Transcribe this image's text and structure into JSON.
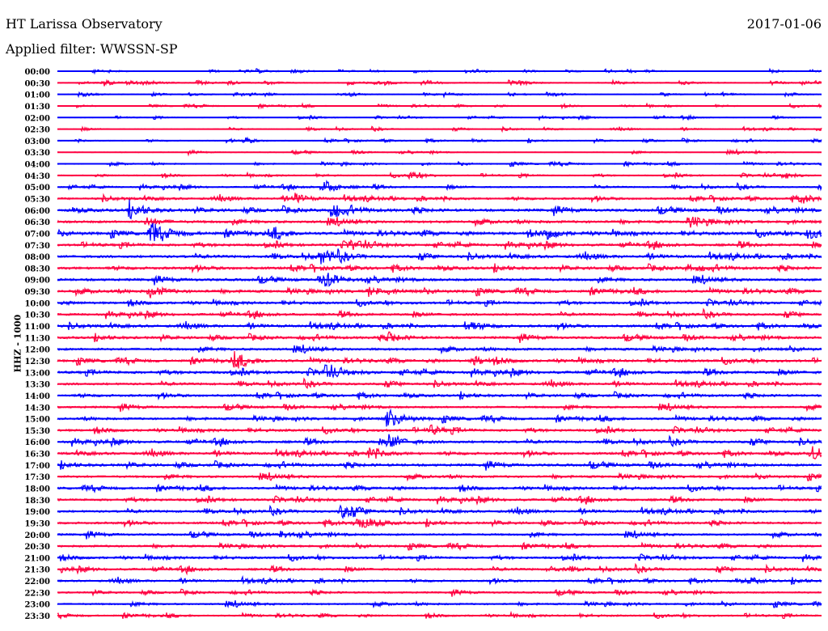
{
  "header": {
    "title": "HT Larissa Observatory",
    "filter": "Applied filter: WWSSN-SP",
    "date": "2017-01-06"
  },
  "chart_data": {
    "type": "line",
    "title": "HT Larissa Observatory",
    "subtitle": "Applied filter: WWSSN-SP",
    "ylabel": "HHZ - 1000",
    "xlabel": "",
    "row_minutes": 30,
    "colors": [
      "#0000ff",
      "#ff0040"
    ],
    "rows": [
      "00:00",
      "00:30",
      "01:00",
      "01:30",
      "02:00",
      "02:30",
      "03:00",
      "03:30",
      "04:00",
      "04:30",
      "05:00",
      "05:30",
      "06:00",
      "06:30",
      "07:00",
      "07:30",
      "08:00",
      "08:30",
      "09:00",
      "09:30",
      "10:00",
      "10:30",
      "11:00",
      "11:30",
      "12:00",
      "12:30",
      "13:00",
      "13:30",
      "14:00",
      "14:30",
      "15:00",
      "15:30",
      "16:00",
      "16:30",
      "17:00",
      "17:30",
      "18:00",
      "18:30",
      "19:00",
      "19:30",
      "20:00",
      "20:30",
      "21:00",
      "21:30",
      "22:00",
      "22:30",
      "23:00",
      "23:30"
    ],
    "noise_level": [
      0.4,
      0.6,
      0.4,
      0.4,
      0.3,
      0.4,
      0.5,
      0.4,
      0.6,
      0.6,
      0.8,
      1.2,
      1.6,
      1.5,
      1.6,
      1.4,
      1.5,
      1.5,
      1.5,
      1.5,
      1.3,
      1.3,
      1.4,
      1.4,
      1.4,
      1.4,
      1.5,
      1.3,
      1.3,
      1.2,
      1.3,
      1.3,
      1.4,
      1.4,
      1.5,
      1.3,
      1.3,
      1.3,
      1.3,
      1.3,
      1.2,
      1.2,
      1.2,
      1.2,
      1.1,
      1.0,
      1.0,
      0.9
    ],
    "events": [
      {
        "row": 1,
        "minute": 1.8,
        "amp": 4
      },
      {
        "row": 6,
        "minute": 7.3,
        "amp": 4
      },
      {
        "row": 9,
        "minute": 13.8,
        "amp": 5
      },
      {
        "row": 9,
        "minute": 28.5,
        "amp": 4
      },
      {
        "row": 10,
        "minute": 10.4,
        "amp": 9
      },
      {
        "row": 11,
        "minute": 9.3,
        "amp": 6
      },
      {
        "row": 11,
        "minute": 29.2,
        "amp": 5
      },
      {
        "row": 12,
        "minute": 2.8,
        "amp": 8
      },
      {
        "row": 12,
        "minute": 10.7,
        "amp": 9
      },
      {
        "row": 13,
        "minute": 3.5,
        "amp": 6
      },
      {
        "row": 13,
        "minute": 24.8,
        "amp": 6
      },
      {
        "row": 14,
        "minute": 3.6,
        "amp": 12
      },
      {
        "row": 14,
        "minute": 8.5,
        "amp": 6
      },
      {
        "row": 14,
        "minute": 19.2,
        "amp": 6
      },
      {
        "row": 14,
        "minute": 29.4,
        "amp": 8
      },
      {
        "row": 15,
        "minute": 11.5,
        "amp": 6
      },
      {
        "row": 16,
        "minute": 10.3,
        "amp": 9
      },
      {
        "row": 17,
        "minute": 24.7,
        "amp": 5
      },
      {
        "row": 18,
        "minute": 10.5,
        "amp": 8
      },
      {
        "row": 19,
        "minute": 3.6,
        "amp": 8
      },
      {
        "row": 19,
        "minute": 12.2,
        "amp": 7
      },
      {
        "row": 22,
        "minute": 16.0,
        "amp": 7
      },
      {
        "row": 23,
        "minute": 13.0,
        "amp": 6
      },
      {
        "row": 25,
        "minute": 6.9,
        "amp": 9
      },
      {
        "row": 25,
        "minute": 16.3,
        "amp": 6
      },
      {
        "row": 26,
        "minute": 10.5,
        "amp": 8
      },
      {
        "row": 30,
        "minute": 12.9,
        "amp": 10
      },
      {
        "row": 31,
        "minute": 14.6,
        "amp": 6
      },
      {
        "row": 32,
        "minute": 13.0,
        "amp": 9
      },
      {
        "row": 33,
        "minute": 12.2,
        "amp": 7
      },
      {
        "row": 33,
        "minute": 29.6,
        "amp": 9
      },
      {
        "row": 38,
        "minute": 11.1,
        "amp": 9
      },
      {
        "row": 39,
        "minute": 11.7,
        "amp": 9
      },
      {
        "row": 40,
        "minute": 8.7,
        "amp": 5
      },
      {
        "row": 43,
        "minute": 19.3,
        "amp": 4
      },
      {
        "row": 44,
        "minute": 27.2,
        "amp": 4
      }
    ]
  }
}
